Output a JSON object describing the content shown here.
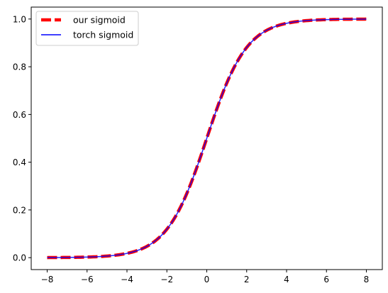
{
  "chart_data": {
    "type": "line",
    "title": "",
    "xlabel": "",
    "ylabel": "",
    "xlim": [
      -8.8,
      8.8
    ],
    "ylim": [
      -0.05,
      1.05
    ],
    "x_ticks": [
      -8,
      -6,
      -4,
      -2,
      0,
      2,
      4,
      6,
      8
    ],
    "y_ticks": [
      0.0,
      0.2,
      0.4,
      0.6,
      0.8,
      1.0
    ],
    "x_tick_labels": [
      "−8",
      "−6",
      "−4",
      "−2",
      "0",
      "2",
      "4",
      "6",
      "8"
    ],
    "y_tick_labels": [
      "0.0",
      "0.2",
      "0.4",
      "0.6",
      "0.8",
      "1.0"
    ],
    "grid": false,
    "legend_position": "upper-left",
    "x": [
      -8,
      -7,
      -6,
      -5,
      -4,
      -3.5,
      -3,
      -2.5,
      -2,
      -1.5,
      -1,
      -0.5,
      0,
      0.5,
      1,
      1.5,
      2,
      2.5,
      3,
      3.5,
      4,
      5,
      6,
      7,
      8
    ],
    "series": [
      {
        "name": "our sigmoid",
        "color": "#ff0000",
        "style": "dashed",
        "values": [
          0.0003,
          0.0009,
          0.0025,
          0.0067,
          0.018,
          0.0293,
          0.0474,
          0.0759,
          0.1192,
          0.1824,
          0.2689,
          0.3775,
          0.5,
          0.6225,
          0.7311,
          0.8176,
          0.8808,
          0.9241,
          0.9526,
          0.9707,
          0.982,
          0.9933,
          0.9975,
          0.9991,
          0.9997
        ]
      },
      {
        "name": "torch sigmoid",
        "color": "#0000ff",
        "style": "solid",
        "values": [
          0.0003,
          0.0009,
          0.0025,
          0.0067,
          0.018,
          0.0293,
          0.0474,
          0.0759,
          0.1192,
          0.1824,
          0.2689,
          0.3775,
          0.5,
          0.6225,
          0.7311,
          0.8176,
          0.8808,
          0.9241,
          0.9526,
          0.9707,
          0.982,
          0.9933,
          0.9975,
          0.9991,
          0.9997
        ]
      }
    ]
  }
}
